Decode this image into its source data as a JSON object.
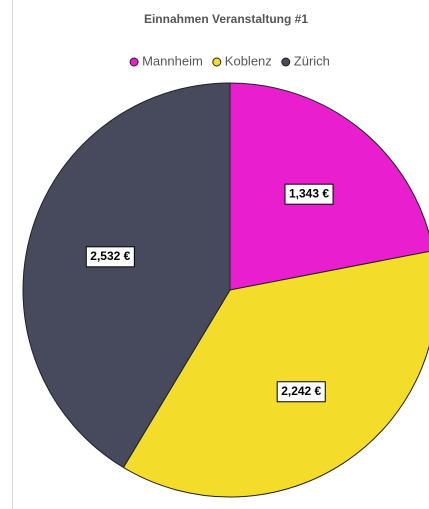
{
  "chart_data": {
    "type": "pie",
    "title": "Einnahmen Veranstaltung #1",
    "categories": [
      "Mannheim",
      "Koblenz",
      "Zürich"
    ],
    "values": [
      1343,
      2242,
      2532
    ],
    "value_labels": [
      "1,343 €",
      "2,242 €",
      "2,532 €"
    ],
    "colors": [
      "#e91fcf",
      "#f3dc2a",
      "#474a5c"
    ],
    "legend": "top"
  }
}
